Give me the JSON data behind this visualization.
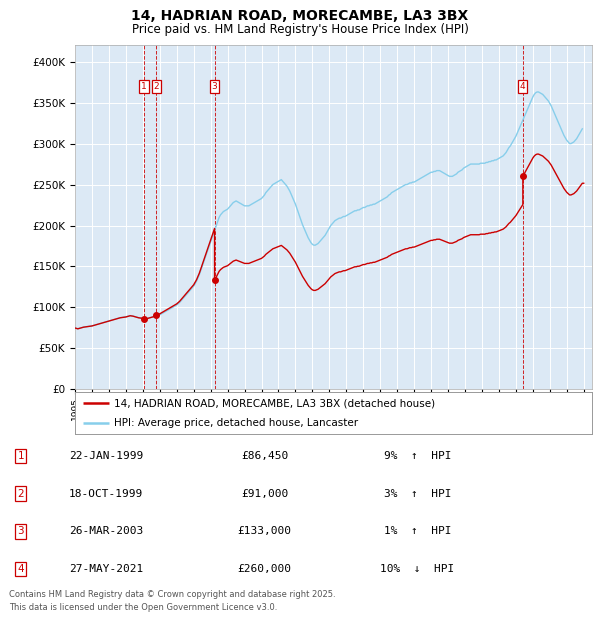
{
  "title": "14, HADRIAN ROAD, MORECAMBE, LA3 3BX",
  "subtitle": "Price paid vs. HM Land Registry's House Price Index (HPI)",
  "ylabel_ticks": [
    "£0",
    "£50K",
    "£100K",
    "£150K",
    "£200K",
    "£250K",
    "£300K",
    "£350K",
    "£400K"
  ],
  "ytick_values": [
    0,
    50000,
    100000,
    150000,
    200000,
    250000,
    300000,
    350000,
    400000
  ],
  "ylim": [
    0,
    420000
  ],
  "xlim_start": 1995.0,
  "xlim_end": 2025.5,
  "background_color": "#ffffff",
  "plot_bg_color": "#dce9f5",
  "grid_color": "#ffffff",
  "sale_color": "#cc0000",
  "hpi_color": "#87CEEB",
  "legend_label_sale": "14, HADRIAN ROAD, MORECAMBE, LA3 3BX (detached house)",
  "legend_label_hpi": "HPI: Average price, detached house, Lancaster",
  "footer": "Contains HM Land Registry data © Crown copyright and database right 2025.\nThis data is licensed under the Open Government Licence v3.0.",
  "transactions": [
    {
      "num": 1,
      "date": "22-JAN-1999",
      "price": 86450,
      "pct": "9%",
      "dir": "↑",
      "year": 1999.06
    },
    {
      "num": 2,
      "date": "18-OCT-1999",
      "price": 91000,
      "pct": "3%",
      "dir": "↑",
      "year": 1999.8
    },
    {
      "num": 3,
      "date": "26-MAR-2003",
      "price": 133000,
      "pct": "1%",
      "dir": "↑",
      "year": 2003.23
    },
    {
      "num": 4,
      "date": "27-MAY-2021",
      "price": 260000,
      "pct": "10%",
      "dir": "↓",
      "year": 2021.41
    }
  ],
  "hpi_years": [
    1995.0,
    1995.083,
    1995.167,
    1995.25,
    1995.333,
    1995.417,
    1995.5,
    1995.583,
    1995.667,
    1995.75,
    1995.833,
    1995.917,
    1996.0,
    1996.083,
    1996.167,
    1996.25,
    1996.333,
    1996.417,
    1996.5,
    1996.583,
    1996.667,
    1996.75,
    1996.833,
    1996.917,
    1997.0,
    1997.083,
    1997.167,
    1997.25,
    1997.333,
    1997.417,
    1997.5,
    1997.583,
    1997.667,
    1997.75,
    1997.833,
    1997.917,
    1998.0,
    1998.083,
    1998.167,
    1998.25,
    1998.333,
    1998.417,
    1998.5,
    1998.583,
    1998.667,
    1998.75,
    1998.833,
    1998.917,
    1999.0,
    1999.083,
    1999.167,
    1999.25,
    1999.333,
    1999.417,
    1999.5,
    1999.583,
    1999.667,
    1999.75,
    1999.833,
    1999.917,
    2000.0,
    2000.083,
    2000.167,
    2000.25,
    2000.333,
    2000.417,
    2000.5,
    2000.583,
    2000.667,
    2000.75,
    2000.833,
    2000.917,
    2001.0,
    2001.083,
    2001.167,
    2001.25,
    2001.333,
    2001.417,
    2001.5,
    2001.583,
    2001.667,
    2001.75,
    2001.833,
    2001.917,
    2002.0,
    2002.083,
    2002.167,
    2002.25,
    2002.333,
    2002.417,
    2002.5,
    2002.583,
    2002.667,
    2002.75,
    2002.833,
    2002.917,
    2003.0,
    2003.083,
    2003.167,
    2003.25,
    2003.333,
    2003.417,
    2003.5,
    2003.583,
    2003.667,
    2003.75,
    2003.833,
    2003.917,
    2004.0,
    2004.083,
    2004.167,
    2004.25,
    2004.333,
    2004.417,
    2004.5,
    2004.583,
    2004.667,
    2004.75,
    2004.833,
    2004.917,
    2005.0,
    2005.083,
    2005.167,
    2005.25,
    2005.333,
    2005.417,
    2005.5,
    2005.583,
    2005.667,
    2005.75,
    2005.833,
    2005.917,
    2006.0,
    2006.083,
    2006.167,
    2006.25,
    2006.333,
    2006.417,
    2006.5,
    2006.583,
    2006.667,
    2006.75,
    2006.833,
    2006.917,
    2007.0,
    2007.083,
    2007.167,
    2007.25,
    2007.333,
    2007.417,
    2007.5,
    2007.583,
    2007.667,
    2007.75,
    2007.833,
    2007.917,
    2008.0,
    2008.083,
    2008.167,
    2008.25,
    2008.333,
    2008.417,
    2008.5,
    2008.583,
    2008.667,
    2008.75,
    2008.833,
    2008.917,
    2009.0,
    2009.083,
    2009.167,
    2009.25,
    2009.333,
    2009.417,
    2009.5,
    2009.583,
    2009.667,
    2009.75,
    2009.833,
    2009.917,
    2010.0,
    2010.083,
    2010.167,
    2010.25,
    2010.333,
    2010.417,
    2010.5,
    2010.583,
    2010.667,
    2010.75,
    2010.833,
    2010.917,
    2011.0,
    2011.083,
    2011.167,
    2011.25,
    2011.333,
    2011.417,
    2011.5,
    2011.583,
    2011.667,
    2011.75,
    2011.833,
    2011.917,
    2012.0,
    2012.083,
    2012.167,
    2012.25,
    2012.333,
    2012.417,
    2012.5,
    2012.583,
    2012.667,
    2012.75,
    2012.833,
    2012.917,
    2013.0,
    2013.083,
    2013.167,
    2013.25,
    2013.333,
    2013.417,
    2013.5,
    2013.583,
    2013.667,
    2013.75,
    2013.833,
    2013.917,
    2014.0,
    2014.083,
    2014.167,
    2014.25,
    2014.333,
    2014.417,
    2014.5,
    2014.583,
    2014.667,
    2014.75,
    2014.833,
    2014.917,
    2015.0,
    2015.083,
    2015.167,
    2015.25,
    2015.333,
    2015.417,
    2015.5,
    2015.583,
    2015.667,
    2015.75,
    2015.833,
    2015.917,
    2016.0,
    2016.083,
    2016.167,
    2016.25,
    2016.333,
    2016.417,
    2016.5,
    2016.583,
    2016.667,
    2016.75,
    2016.833,
    2016.917,
    2017.0,
    2017.083,
    2017.167,
    2017.25,
    2017.333,
    2017.417,
    2017.5,
    2017.583,
    2017.667,
    2017.75,
    2017.833,
    2017.917,
    2018.0,
    2018.083,
    2018.167,
    2018.25,
    2018.333,
    2018.417,
    2018.5,
    2018.583,
    2018.667,
    2018.75,
    2018.833,
    2018.917,
    2019.0,
    2019.083,
    2019.167,
    2019.25,
    2019.333,
    2019.417,
    2019.5,
    2019.583,
    2019.667,
    2019.75,
    2019.833,
    2019.917,
    2020.0,
    2020.083,
    2020.167,
    2020.25,
    2020.333,
    2020.417,
    2020.5,
    2020.583,
    2020.667,
    2020.75,
    2020.833,
    2020.917,
    2021.0,
    2021.083,
    2021.167,
    2021.25,
    2021.333,
    2021.417,
    2021.5,
    2021.583,
    2021.667,
    2021.75,
    2021.833,
    2021.917,
    2022.0,
    2022.083,
    2022.167,
    2022.25,
    2022.333,
    2022.417,
    2022.5,
    2022.583,
    2022.667,
    2022.75,
    2022.833,
    2022.917,
    2023.0,
    2023.083,
    2023.167,
    2023.25,
    2023.333,
    2023.417,
    2023.5,
    2023.583,
    2023.667,
    2023.75,
    2023.833,
    2023.917,
    2024.0,
    2024.083,
    2024.167,
    2024.25,
    2024.333,
    2024.417,
    2024.5,
    2024.583,
    2024.667,
    2024.75,
    2024.833,
    2024.917
  ],
  "hpi_values": [
    75000,
    74500,
    74000,
    74500,
    75000,
    75500,
    76000,
    76200,
    76500,
    76800,
    77000,
    77200,
    77500,
    78000,
    78500,
    79000,
    79500,
    80000,
    80500,
    81000,
    81500,
    82000,
    82500,
    83000,
    83500,
    84000,
    84500,
    85000,
    85500,
    86000,
    86500,
    87000,
    87500,
    87800,
    88000,
    88200,
    88500,
    89000,
    89500,
    90000,
    89800,
    89500,
    89000,
    88500,
    88000,
    87500,
    87200,
    87000,
    86800,
    86500,
    86200,
    86500,
    87000,
    87500,
    88000,
    88500,
    89000,
    89500,
    90000,
    90500,
    91000,
    92000,
    93000,
    94000,
    95000,
    96000,
    97000,
    98000,
    99000,
    100000,
    101000,
    102000,
    103000,
    104500,
    106000,
    108000,
    110000,
    112000,
    114000,
    116000,
    118000,
    120000,
    122000,
    124000,
    126000,
    129000,
    132000,
    136000,
    140000,
    145000,
    150000,
    155000,
    160000,
    165000,
    170000,
    175000,
    180000,
    185000,
    190000,
    195000,
    200000,
    205000,
    210000,
    213000,
    215000,
    217000,
    218000,
    219000,
    220000,
    222000,
    224000,
    226000,
    228000,
    229000,
    230000,
    229000,
    228000,
    227000,
    226000,
    225000,
    224000,
    224000,
    224000,
    224000,
    225000,
    226000,
    227000,
    228000,
    229000,
    230000,
    231000,
    232000,
    233000,
    235000,
    237000,
    240000,
    242000,
    244000,
    246000,
    248000,
    250000,
    251000,
    252000,
    253000,
    254000,
    255000,
    256000,
    254000,
    252000,
    250000,
    248000,
    245000,
    242000,
    238000,
    234000,
    230000,
    226000,
    221000,
    216000,
    211000,
    206000,
    201000,
    197000,
    193000,
    189000,
    185000,
    182000,
    179000,
    177000,
    176000,
    176000,
    177000,
    178000,
    180000,
    182000,
    184000,
    186000,
    188000,
    191000,
    194000,
    197000,
    200000,
    202000,
    204000,
    206000,
    207000,
    208000,
    209000,
    209000,
    210000,
    211000,
    211000,
    212000,
    213000,
    214000,
    215000,
    216000,
    217000,
    218000,
    218000,
    219000,
    219000,
    220000,
    221000,
    222000,
    222000,
    223000,
    224000,
    224000,
    225000,
    225000,
    226000,
    226000,
    227000,
    228000,
    229000,
    230000,
    231000,
    232000,
    233000,
    234000,
    235000,
    237000,
    238000,
    240000,
    241000,
    242000,
    243000,
    244000,
    245000,
    246000,
    247000,
    248000,
    249000,
    250000,
    250000,
    251000,
    252000,
    252000,
    253000,
    253000,
    254000,
    255000,
    256000,
    257000,
    258000,
    259000,
    260000,
    261000,
    262000,
    263000,
    264000,
    265000,
    265000,
    266000,
    266000,
    267000,
    267000,
    267000,
    266000,
    265000,
    264000,
    263000,
    262000,
    261000,
    260000,
    260000,
    260000,
    261000,
    262000,
    263000,
    265000,
    266000,
    267000,
    268000,
    270000,
    271000,
    272000,
    273000,
    274000,
    275000,
    275000,
    275000,
    275000,
    275000,
    275000,
    275000,
    276000,
    276000,
    276000,
    276000,
    277000,
    277000,
    278000,
    278000,
    279000,
    279000,
    280000,
    280000,
    281000,
    282000,
    283000,
    284000,
    285000,
    287000,
    289000,
    292000,
    295000,
    297000,
    300000,
    303000,
    306000,
    309000,
    313000,
    317000,
    321000,
    325000,
    329000,
    333000,
    337000,
    341000,
    345000,
    349000,
    353000,
    357000,
    360000,
    362000,
    363000,
    363000,
    362000,
    361000,
    360000,
    358000,
    356000,
    354000,
    352000,
    349000,
    346000,
    342000,
    338000,
    334000,
    330000,
    326000,
    322000,
    318000,
    314000,
    310000,
    307000,
    304000,
    302000,
    300000,
    300000,
    301000,
    302000,
    304000,
    306000,
    309000,
    312000,
    315000,
    318000
  ]
}
